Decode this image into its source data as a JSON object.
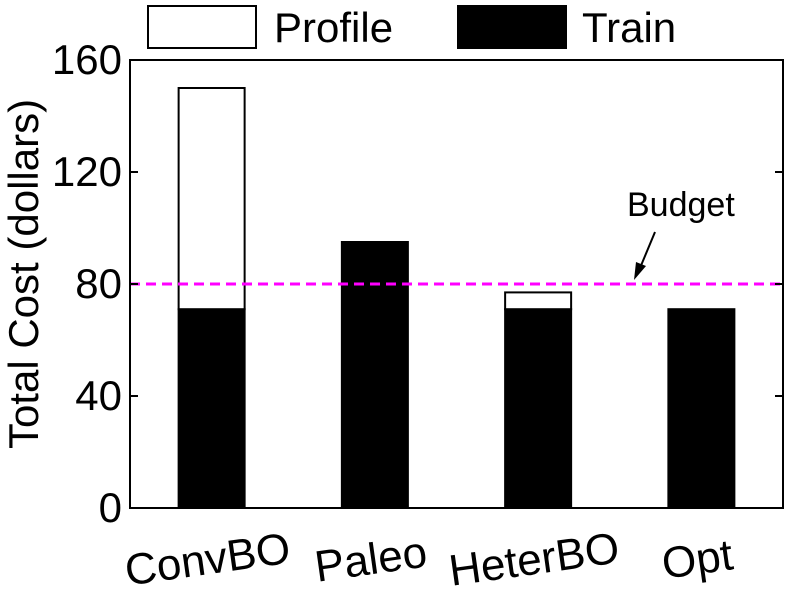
{
  "chart_data": {
    "type": "bar",
    "stacked": true,
    "categories": [
      "ConvBO",
      "Paleo",
      "HeterBO",
      "Opt"
    ],
    "series": [
      {
        "name": "Train",
        "values": [
          71,
          95,
          71,
          71
        ],
        "color": "#000000"
      },
      {
        "name": "Profile",
        "values": [
          79,
          0,
          6,
          0
        ],
        "color": "#ffffff"
      }
    ],
    "xlabel": "",
    "ylabel": "Total Cost (dollars)",
    "ylim": [
      0,
      160
    ],
    "yticks": [
      0,
      40,
      80,
      120,
      160
    ],
    "grid": false,
    "legend": {
      "entries": [
        "Profile",
        "Train"
      ],
      "placement": "top"
    },
    "reference_line": {
      "value": 80,
      "label": "Budget",
      "color": "#ff00ff",
      "style": "dashed"
    }
  }
}
